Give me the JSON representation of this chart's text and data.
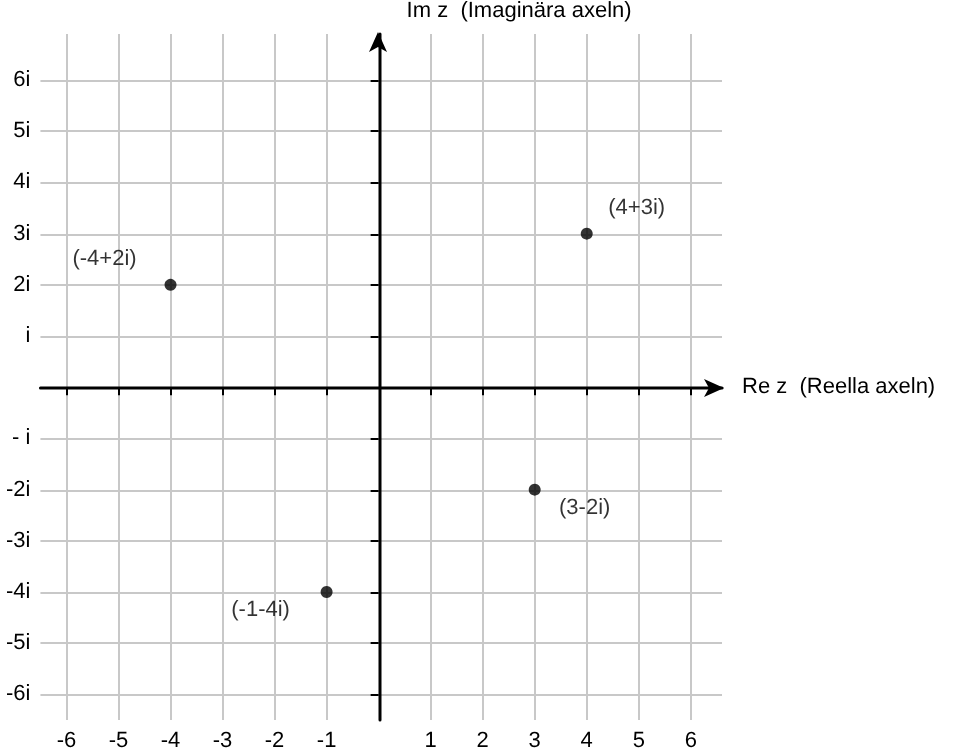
{
  "chart_data": {
    "type": "scatter",
    "xlabel": "Re z  (Reella axeln)",
    "ylabel": "Im z  (Imaginära axeln)",
    "series": [
      {
        "color": "#000000",
        "x": [
          -4,
          4,
          3,
          -1
        ],
        "values": [
          2,
          3,
          -2,
          -4
        ],
        "value_labels": [
          "(-4+2i)",
          "(4+3i)",
          "(3-2i)",
          "(-1-4i)"
        ]
      }
    ],
    "xlim": [
      -6.5,
      6.6
    ],
    "ylim": [
      -6.5,
      6.9
    ],
    "xticks": [
      -6,
      -5,
      -4,
      -3,
      -2,
      -1,
      1,
      2,
      3,
      4,
      5,
      6
    ],
    "yticks": [
      {
        "value": -6,
        "label": "-6i"
      },
      {
        "value": -5,
        "label": "-5i"
      },
      {
        "value": -4,
        "label": "-4i"
      },
      {
        "value": -3,
        "label": "-3i"
      },
      {
        "value": -2,
        "label": "-2i"
      },
      {
        "value": -1,
        "label": "- i"
      },
      {
        "value": 1,
        "label": "i"
      },
      {
        "value": 2,
        "label": "2i"
      },
      {
        "value": 3,
        "label": "3i"
      },
      {
        "value": 4,
        "label": "4i"
      },
      {
        "value": 5,
        "label": "5i"
      },
      {
        "value": 6,
        "label": "6i"
      }
    ],
    "grid": true,
    "marker": "circle"
  }
}
